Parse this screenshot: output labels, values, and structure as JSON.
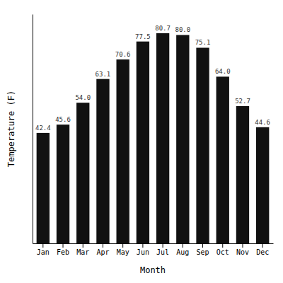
{
  "chart_data": {
    "type": "bar",
    "categories": [
      "Jan",
      "Feb",
      "Mar",
      "Apr",
      "May",
      "Jun",
      "Jul",
      "Aug",
      "Sep",
      "Oct",
      "Nov",
      "Dec"
    ],
    "values": [
      42.4,
      45.6,
      54.0,
      63.1,
      70.6,
      77.5,
      80.7,
      80.0,
      75.1,
      64.0,
      52.7,
      44.6
    ],
    "value_labels": [
      "42.4",
      "45.6",
      "54.0",
      "63.1",
      "70.6",
      "77.5",
      "80.7",
      "80.0",
      "75.1",
      "64.0",
      "52.7",
      "44.6"
    ],
    "color": "#111111",
    "xlabel": "Month",
    "ylabel": "Temperature (F)",
    "ylim": [
      0,
      88
    ],
    "data_labels": true,
    "tick_labels": "x",
    "grid": false
  }
}
